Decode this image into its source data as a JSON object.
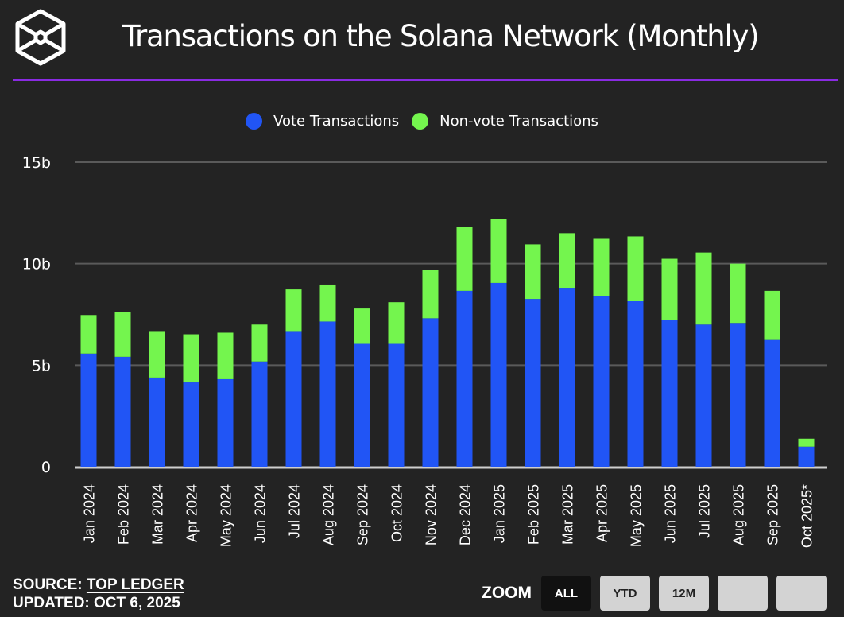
{
  "header": {
    "title": "Transactions on the Solana Network (Monthly)",
    "logo_icon": "hexagon-cube-logo-icon",
    "accent_rule_color": "#8a2be2"
  },
  "legend": {
    "items": [
      {
        "label": "Vote Transactions",
        "color": "#2155f5"
      },
      {
        "label": "Non-vote Transactions",
        "color": "#74f54e"
      }
    ]
  },
  "chart_data": {
    "type": "bar",
    "stacked": true,
    "title": "Transactions on the Solana Network (Monthly)",
    "xlabel": "",
    "ylabel": "",
    "ylim": [
      0,
      15
    ],
    "y_unit": "billions",
    "grid": true,
    "legend_position": "top-center",
    "y_ticks": [
      {
        "value": 0,
        "label": "0"
      },
      {
        "value": 5,
        "label": "5b"
      },
      {
        "value": 10,
        "label": "10b"
      },
      {
        "value": 15,
        "label": "15b"
      }
    ],
    "categories": [
      "Jan 2024",
      "Feb 2024",
      "Mar 2024",
      "Apr 2024",
      "May 2024",
      "Jun 2024",
      "Jul 2024",
      "Aug 2024",
      "Sep 2024",
      "Oct 2024",
      "Nov 2024",
      "Dec 2024",
      "Jan 2025",
      "Feb 2025",
      "Mar 2025",
      "Apr 2025",
      "May 2025",
      "Jun 2025",
      "Jul 2025",
      "Aug 2025",
      "Sep 2025",
      "Oct 2025*"
    ],
    "series": [
      {
        "name": "Vote Transactions",
        "color": "#2155f5",
        "values": [
          5.57,
          5.41,
          4.39,
          4.15,
          4.31,
          5.18,
          6.68,
          7.15,
          6.05,
          6.05,
          7.31,
          8.66,
          9.05,
          8.26,
          8.81,
          8.42,
          8.18,
          7.23,
          7.0,
          7.08,
          6.28,
          0.99
        ]
      },
      {
        "name": "Non-vote Transactions",
        "color": "#74f54e",
        "values": [
          1.9,
          2.22,
          2.29,
          2.37,
          2.29,
          1.82,
          2.05,
          1.82,
          1.74,
          2.05,
          2.37,
          3.16,
          3.16,
          2.69,
          2.69,
          2.84,
          3.16,
          3.01,
          3.55,
          2.92,
          2.38,
          0.39
        ]
      }
    ]
  },
  "footer": {
    "source_prefix": "SOURCE: ",
    "source_link": "TOP LEDGER",
    "updated": "UPDATED: OCT 6, 2025",
    "zoom_label": "ZOOM",
    "zoom_buttons": [
      {
        "label": "ALL",
        "active": true
      },
      {
        "label": "YTD",
        "active": false
      },
      {
        "label": "12M",
        "active": false
      },
      {
        "label": "",
        "active": false
      },
      {
        "label": "",
        "active": false
      }
    ]
  }
}
